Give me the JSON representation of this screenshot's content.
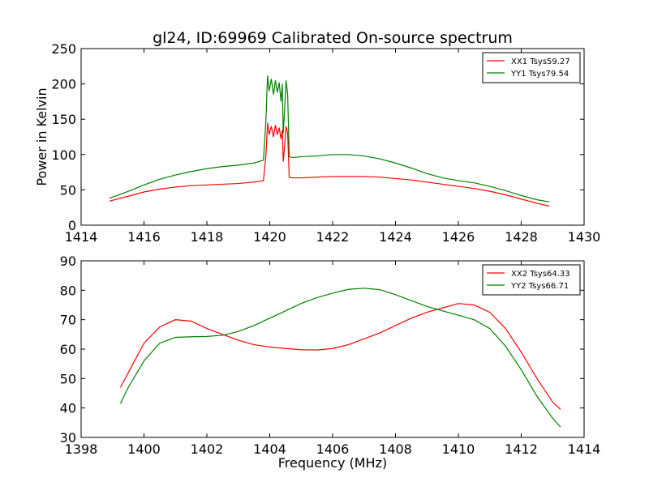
{
  "figure": {
    "title": "gl24, ID:69969 Calibrated On-source spectrum"
  },
  "chart_data": [
    {
      "type": "line",
      "title": "gl24, ID:69969 Calibrated On-source spectrum",
      "xlabel": "",
      "ylabel": "Power in Kelvin",
      "xlim": [
        1414,
        1430
      ],
      "ylim": [
        0,
        250
      ],
      "xticks": [
        1414,
        1416,
        1418,
        1420,
        1422,
        1424,
        1426,
        1428,
        1430
      ],
      "yticks": [
        0,
        50,
        100,
        150,
        200,
        250
      ],
      "legend": "top-right",
      "grid": false,
      "series": [
        {
          "name": "XX1 Tsys59.27",
          "color": "#ff0000",
          "x": [
            1414.9,
            1415.5,
            1416,
            1416.5,
            1417,
            1417.5,
            1418,
            1418.5,
            1419,
            1419.5,
            1419.8,
            1419.88,
            1419.93,
            1419.98,
            1420.05,
            1420.12,
            1420.18,
            1420.24,
            1420.3,
            1420.36,
            1420.4,
            1420.43,
            1420.47,
            1420.52,
            1420.57,
            1420.62,
            1420.7,
            1420.8,
            1421,
            1421.5,
            1422,
            1422.5,
            1423,
            1423.5,
            1424,
            1424.5,
            1425,
            1425.5,
            1426,
            1426.5,
            1427,
            1427.5,
            1428,
            1428.5,
            1428.9
          ],
          "y": [
            34,
            41,
            47,
            51,
            54,
            56,
            57,
            58,
            59,
            61,
            63,
            100,
            145,
            128,
            140,
            125,
            142,
            128,
            138,
            122,
            135,
            90,
            110,
            140,
            130,
            68,
            67,
            67,
            67,
            68,
            69,
            69,
            69,
            68,
            66,
            64,
            61,
            58,
            55,
            52,
            48,
            43,
            37,
            31,
            27
          ]
        },
        {
          "name": "YY1 Tsys79.54",
          "color": "#008000",
          "x": [
            1414.9,
            1415.5,
            1416,
            1416.5,
            1417,
            1417.5,
            1418,
            1418.5,
            1419,
            1419.5,
            1419.8,
            1419.88,
            1419.93,
            1419.98,
            1420.05,
            1420.12,
            1420.18,
            1420.24,
            1420.3,
            1420.36,
            1420.4,
            1420.43,
            1420.47,
            1420.52,
            1420.57,
            1420.62,
            1420.7,
            1420.8,
            1421,
            1421.5,
            1422,
            1422.5,
            1423,
            1423.5,
            1424,
            1424.5,
            1425,
            1425.5,
            1426,
            1426.5,
            1427,
            1427.5,
            1428,
            1428.5,
            1428.9
          ],
          "y": [
            38,
            48,
            57,
            65,
            71,
            76,
            80,
            83,
            85,
            88,
            92,
            150,
            212,
            190,
            207,
            185,
            205,
            188,
            202,
            175,
            200,
            130,
            160,
            205,
            185,
            97,
            96,
            96,
            97,
            98,
            100,
            100,
            98,
            94,
            88,
            81,
            73,
            67,
            63,
            60,
            55,
            49,
            42,
            36,
            33
          ]
        }
      ]
    },
    {
      "type": "line",
      "title": "",
      "xlabel": "Frequency (MHz)",
      "ylabel": "",
      "xlim": [
        1398,
        1414
      ],
      "ylim": [
        30,
        90
      ],
      "xticks": [
        1398,
        1400,
        1402,
        1404,
        1406,
        1408,
        1410,
        1412,
        1414
      ],
      "yticks": [
        30,
        40,
        50,
        60,
        70,
        80,
        90
      ],
      "legend": "top-right",
      "grid": false,
      "series": [
        {
          "name": "XX2 Tsys64.33",
          "color": "#ff0000",
          "x": [
            1399.25,
            1399.5,
            1400,
            1400.5,
            1401,
            1401.5,
            1402,
            1402.5,
            1403,
            1403.5,
            1404,
            1404.5,
            1405,
            1405.5,
            1406,
            1406.5,
            1407,
            1407.5,
            1408,
            1408.5,
            1409,
            1409.5,
            1410,
            1410.5,
            1411,
            1411.5,
            1412,
            1412.5,
            1413,
            1413.25
          ],
          "y": [
            47,
            52,
            62,
            67.5,
            70,
            69.5,
            67,
            65,
            63,
            61.5,
            60.7,
            60.2,
            59.8,
            59.7,
            60.2,
            61.5,
            63.5,
            65.5,
            68,
            70.5,
            72.5,
            74,
            75.5,
            75,
            72.5,
            67,
            59,
            50,
            42,
            39.5
          ]
        },
        {
          "name": "YY2 Tsys66.71",
          "color": "#008000",
          "x": [
            1399.25,
            1399.5,
            1400,
            1400.5,
            1401,
            1401.5,
            1402,
            1402.5,
            1403,
            1403.5,
            1404,
            1404.5,
            1405,
            1405.5,
            1406,
            1406.5,
            1407,
            1407.5,
            1408,
            1408.5,
            1409,
            1409.5,
            1410,
            1410.5,
            1411,
            1411.5,
            1412,
            1412.5,
            1413,
            1413.25
          ],
          "y": [
            41.5,
            47,
            56,
            62,
            64,
            64.2,
            64.3,
            64.7,
            66,
            68,
            70.5,
            73,
            75.5,
            77.5,
            79,
            80.3,
            80.7,
            80.2,
            78.5,
            76.5,
            74.5,
            73,
            71.5,
            70,
            67,
            61,
            53,
            44,
            36.5,
            33.5
          ]
        }
      ]
    }
  ]
}
